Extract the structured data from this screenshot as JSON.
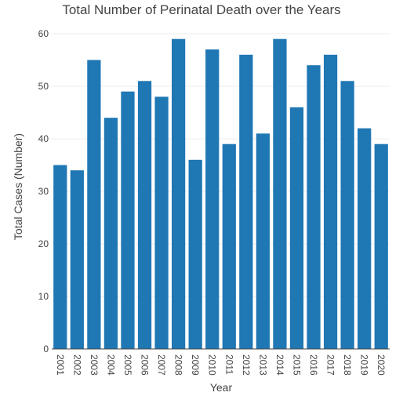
{
  "chart_data": {
    "type": "bar",
    "title": "Total Number of Perinatal Death over the Years",
    "xlabel": "Year",
    "ylabel": "Total Cases (Number)",
    "categories": [
      "2001",
      "2002",
      "2003",
      "2004",
      "2005",
      "2006",
      "2007",
      "2008",
      "2009",
      "2010",
      "2011",
      "2012",
      "2013",
      "2014",
      "2015",
      "2016",
      "2017",
      "2018",
      "2019",
      "2020"
    ],
    "values": [
      35,
      34,
      55,
      44,
      49,
      51,
      48,
      59,
      36,
      57,
      39,
      56,
      41,
      59,
      46,
      54,
      56,
      51,
      42,
      39
    ],
    "ylim": [
      0,
      60
    ],
    "yticks": [
      0,
      10,
      20,
      30,
      40,
      50,
      60
    ],
    "grid": true,
    "bar_color": "#1f77b4"
  }
}
